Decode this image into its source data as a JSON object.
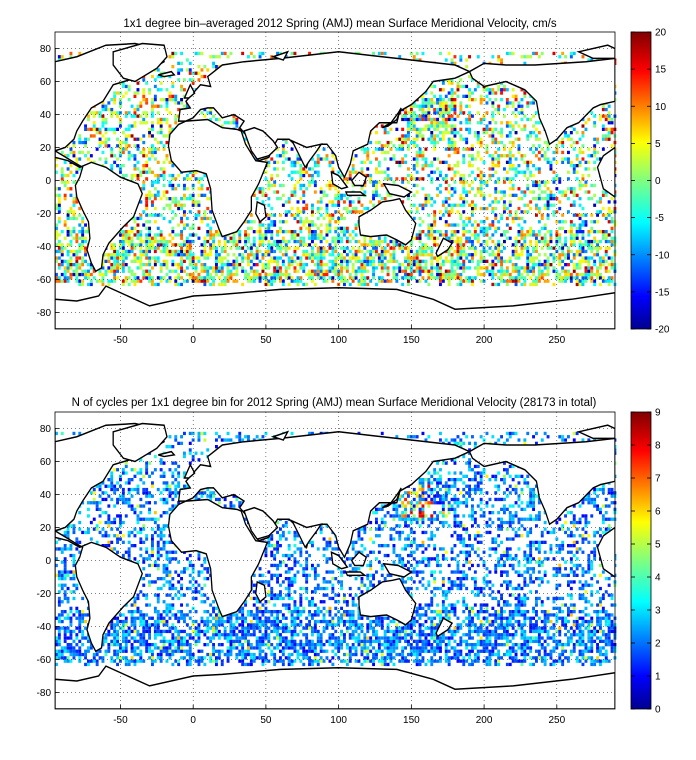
{
  "figure": [
    {
      "id": "top",
      "title": "1x1 degree bin–averaged 2012 Spring (AMJ) mean Surface Meridional Velocity, cm/s",
      "x_ticks": [
        "-50",
        "0",
        "50",
        "100",
        "150",
        "200",
        "250"
      ],
      "y_ticks": [
        "80",
        "60",
        "40",
        "20",
        "0",
        "-20",
        "-40",
        "-60",
        "-80"
      ],
      "colorbar_ticks": [
        "20",
        "15",
        "10",
        "5",
        "0",
        "-5",
        "-10",
        "-15",
        "-20"
      ],
      "colorbar_range": [
        -20,
        20
      ],
      "colormap": "jet"
    },
    {
      "id": "bottom",
      "title": "N of cycles per 1x1 degree bin for 2012 Spring (AMJ) mean Surface Meridional Velocity (28173 in total)",
      "x_ticks": [
        "-50",
        "0",
        "50",
        "100",
        "150",
        "200",
        "250"
      ],
      "y_ticks": [
        "80",
        "60",
        "40",
        "20",
        "0",
        "-20",
        "-40",
        "-60",
        "-80"
      ],
      "colorbar_ticks": [
        "9",
        "8",
        "7",
        "6",
        "5",
        "4",
        "3",
        "2",
        "1",
        "0"
      ],
      "colorbar_range": [
        0,
        9
      ],
      "colormap": "jet"
    }
  ],
  "chart_data": [
    {
      "type": "heatmap",
      "title": "1x1 degree bin–averaged 2012 Spring (AMJ) mean Surface Meridional Velocity, cm/s",
      "xlim": [
        -95,
        290
      ],
      "ylim": [
        -90,
        90
      ],
      "value_range": [
        -20,
        20
      ],
      "grid": true
    },
    {
      "type": "heatmap",
      "title": "N of cycles per 1x1 degree bin for 2012 Spring (AMJ) mean Surface Meridional Velocity (28173 in total)",
      "xlim": [
        -95,
        290
      ],
      "ylim": [
        -90,
        90
      ],
      "value_range": [
        0,
        9
      ],
      "grid": true
    }
  ]
}
